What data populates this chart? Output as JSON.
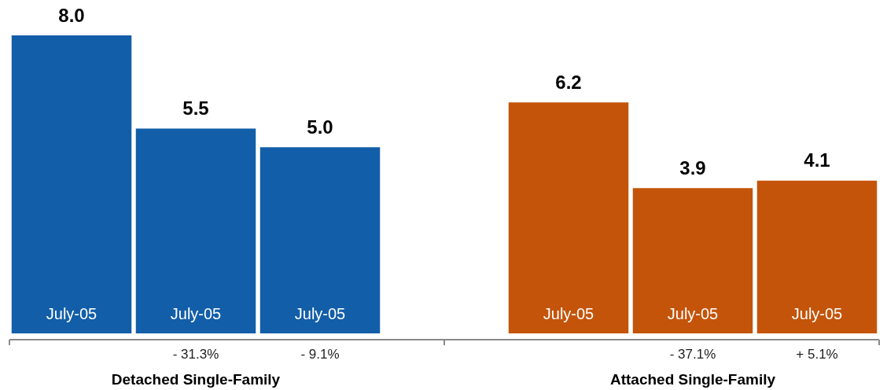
{
  "chart_data": {
    "type": "bar",
    "categories": [
      "July-05",
      "July-05",
      "July-05",
      null,
      "July-05",
      "July-05",
      "July-05"
    ],
    "values": [
      8.0,
      5.5,
      5.0,
      null,
      6.2,
      3.9,
      4.1
    ],
    "colors": [
      "#125ea9",
      "#125ea9",
      "#125ea9",
      "#125ea9",
      "#c4540a",
      "#c4540a",
      "#c4540a"
    ],
    "value_labels": [
      "8.0",
      "5.5",
      "5.0",
      null,
      "6.2",
      "3.9",
      "4.1"
    ],
    "annotations": [
      "- 31.3%",
      "- 9.1%",
      "- 37.1%",
      "+ 5.1%",
      "Detached Single-Family",
      "Attached Single-Family"
    ]
  }
}
